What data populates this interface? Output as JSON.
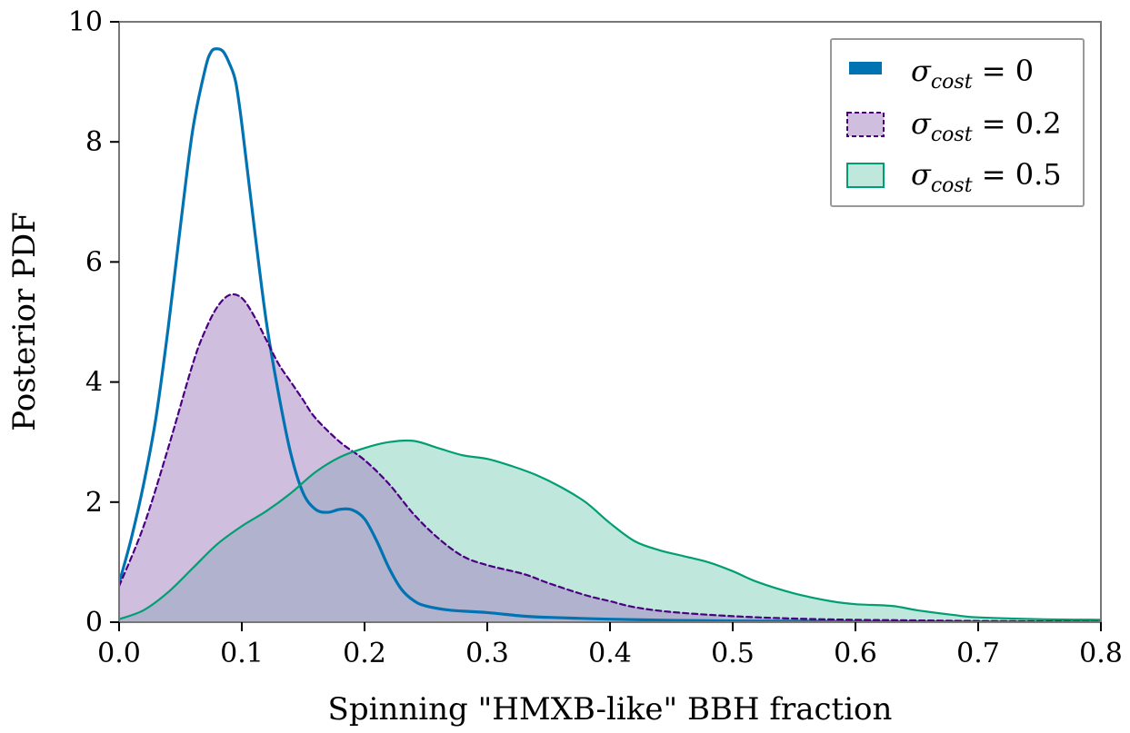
{
  "chart_data": {
    "type": "area",
    "title": "",
    "xlabel": "Spinning \"HMXB-like\" BBH fraction",
    "ylabel": "Posterior PDF",
    "xlim": [
      0,
      0.8
    ],
    "ylim": [
      0,
      10
    ],
    "xticks": [
      "0.0",
      "0.1",
      "0.2",
      "0.3",
      "0.4",
      "0.5",
      "0.6",
      "0.7",
      "0.8"
    ],
    "yticks": [
      "0",
      "2",
      "4",
      "6",
      "8",
      "10"
    ],
    "grid": false,
    "legend_position": "top-right",
    "series": [
      {
        "name": "σcost = 0",
        "legend_symbol": "σ",
        "legend_sub": "cost",
        "legend_rhs": " = 0",
        "color": "#0173b2",
        "fill_opacity": 0,
        "line_style": "solid",
        "x": [
          0.0,
          0.01,
          0.02,
          0.03,
          0.04,
          0.05,
          0.06,
          0.07,
          0.075,
          0.08,
          0.085,
          0.09,
          0.095,
          0.1,
          0.11,
          0.12,
          0.13,
          0.14,
          0.15,
          0.16,
          0.17,
          0.18,
          0.19,
          0.2,
          0.21,
          0.22,
          0.23,
          0.24,
          0.25,
          0.27,
          0.3,
          0.33,
          0.35,
          0.4,
          0.45,
          0.5,
          0.55,
          0.6,
          0.65,
          0.7,
          0.75,
          0.8
        ],
        "y": [
          0.65,
          1.4,
          2.3,
          3.4,
          4.9,
          6.6,
          8.2,
          9.2,
          9.5,
          9.55,
          9.5,
          9.3,
          9.0,
          8.3,
          6.6,
          5.0,
          3.8,
          2.8,
          2.15,
          1.88,
          1.83,
          1.88,
          1.87,
          1.72,
          1.35,
          0.9,
          0.55,
          0.36,
          0.27,
          0.2,
          0.16,
          0.1,
          0.08,
          0.05,
          0.03,
          0.02,
          0.015,
          0.01,
          0.008,
          0.005,
          0.003,
          0.002
        ]
      },
      {
        "name": "σcost = 0.2",
        "legend_symbol": "σ",
        "legend_sub": "cost",
        "legend_rhs": " = 0.2",
        "color": "#4b0082",
        "fill": "#a27dc0",
        "fill_opacity": 0.5,
        "line_style": "dashed",
        "x": [
          0.0,
          0.02,
          0.04,
          0.06,
          0.07,
          0.08,
          0.09,
          0.1,
          0.11,
          0.12,
          0.13,
          0.14,
          0.15,
          0.16,
          0.18,
          0.2,
          0.22,
          0.24,
          0.26,
          0.28,
          0.3,
          0.33,
          0.35,
          0.38,
          0.4,
          0.42,
          0.45,
          0.5,
          0.55,
          0.6,
          0.65,
          0.7,
          0.8
        ],
        "y": [
          0.6,
          1.6,
          2.9,
          4.3,
          4.85,
          5.25,
          5.45,
          5.4,
          5.1,
          4.7,
          4.3,
          4.0,
          3.7,
          3.4,
          3.0,
          2.7,
          2.3,
          1.8,
          1.4,
          1.1,
          0.95,
          0.8,
          0.65,
          0.45,
          0.35,
          0.25,
          0.17,
          0.1,
          0.06,
          0.04,
          0.03,
          0.02,
          0.01
        ]
      },
      {
        "name": "σcost = 0.5",
        "legend_symbol": "σ",
        "legend_sub": "cost",
        "legend_rhs": " = 0.5",
        "color": "#029e73",
        "fill": "#7fcfb9",
        "fill_opacity": 0.5,
        "line_style": "solid",
        "x": [
          0.0,
          0.02,
          0.04,
          0.06,
          0.08,
          0.1,
          0.12,
          0.14,
          0.16,
          0.18,
          0.2,
          0.22,
          0.24,
          0.26,
          0.28,
          0.3,
          0.32,
          0.34,
          0.36,
          0.38,
          0.4,
          0.42,
          0.44,
          0.46,
          0.48,
          0.5,
          0.52,
          0.55,
          0.58,
          0.6,
          0.63,
          0.65,
          0.68,
          0.7,
          0.75,
          0.8
        ],
        "y": [
          0.05,
          0.2,
          0.5,
          0.9,
          1.3,
          1.6,
          1.85,
          2.15,
          2.5,
          2.75,
          2.9,
          3.0,
          3.02,
          2.9,
          2.78,
          2.72,
          2.6,
          2.45,
          2.25,
          2.0,
          1.65,
          1.35,
          1.2,
          1.1,
          1.0,
          0.85,
          0.67,
          0.48,
          0.35,
          0.3,
          0.27,
          0.2,
          0.12,
          0.08,
          0.05,
          0.04
        ]
      }
    ]
  }
}
